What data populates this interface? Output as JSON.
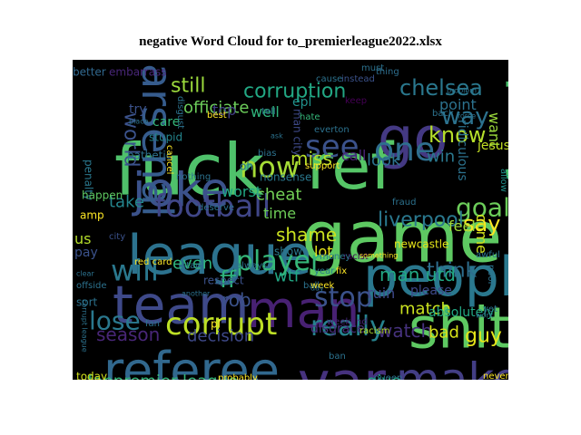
{
  "chart_data": {
    "type": "wordcloud",
    "title": "negative Word Cloud for to_premierleague2022.xlsx",
    "background": "#000000",
    "colormap": "viridis",
    "words": [
      {
        "text": "fuck",
        "color": "#4fc16b"
      },
      {
        "text": "ref",
        "color": "#56c667"
      },
      {
        "text": "go",
        "color": "#443983"
      },
      {
        "text": "play",
        "color": "#4ac16d"
      },
      {
        "text": "game",
        "color": "#5ec962"
      },
      {
        "text": "joke",
        "color": "#3b528b"
      },
      {
        "text": "league",
        "color": "#2c728e"
      },
      {
        "text": "people",
        "color": "#2a788e"
      },
      {
        "text": "shit",
        "color": "#5ec962"
      },
      {
        "text": "team",
        "color": "#3e4989"
      },
      {
        "text": "man",
        "color": "#482173"
      },
      {
        "text": "var",
        "color": "#46327e"
      },
      {
        "text": "referee",
        "color": "#31688e"
      },
      {
        "text": "make",
        "color": "#433e85"
      },
      {
        "text": "corrupt",
        "color": "#bddf26"
      },
      {
        "text": "arsenal",
        "color": "#365c8d"
      },
      {
        "text": "football",
        "color": "#404688"
      },
      {
        "text": "now",
        "color": "#a5db36"
      },
      {
        "text": "one",
        "color": "#2e6e8e"
      },
      {
        "text": "see",
        "color": "#3b528b"
      },
      {
        "text": "will",
        "color": "#2a788e"
      },
      {
        "text": "player",
        "color": "#35b779"
      },
      {
        "text": "stop",
        "color": "#3b528b"
      },
      {
        "text": "lose",
        "color": "#2a788e"
      },
      {
        "text": "really",
        "color": "#26828e"
      },
      {
        "text": "need",
        "color": "#7ad151"
      },
      {
        "text": "corruption",
        "color": "#22a884"
      },
      {
        "text": "chelsea",
        "color": "#2a788e"
      },
      {
        "text": "way",
        "color": "#2c728e"
      },
      {
        "text": "know",
        "color": "#b5de2b"
      },
      {
        "text": "goal",
        "color": "#6ccd5a"
      },
      {
        "text": "liverpool",
        "color": "#2a788e"
      },
      {
        "text": "say",
        "color": "#fde725"
      },
      {
        "text": "think",
        "color": "#2e6e8e"
      },
      {
        "text": "man utd",
        "color": "#22a884"
      },
      {
        "text": "shame",
        "color": "#cae11f"
      },
      {
        "text": "ff",
        "color": "#2eb37c"
      },
      {
        "text": "rob",
        "color": "#3b528b"
      },
      {
        "text": "decision",
        "color": "#3e4989"
      },
      {
        "text": "season",
        "color": "#482677"
      },
      {
        "text": "watch",
        "color": "#46327e"
      },
      {
        "text": "bad",
        "color": "#d8e219"
      },
      {
        "text": "guy",
        "color": "#e5e419"
      },
      {
        "text": "fanpremier league",
        "color": "#35b779"
      },
      {
        "text": "give",
        "color": "#22a884"
      },
      {
        "text": "official",
        "color": "#482878"
      },
      {
        "text": "club",
        "color": "#bddf26"
      },
      {
        "text": "wrong",
        "color": "#3b528b"
      },
      {
        "text": "world",
        "color": "#3b528b"
      },
      {
        "text": "take",
        "color": "#24868e"
      },
      {
        "text": "cheat",
        "color": "#73d056"
      },
      {
        "text": "miss",
        "color": "#b5de2b"
      },
      {
        "text": "look",
        "color": "#2c728e"
      },
      {
        "text": "win",
        "color": "#2a788e"
      },
      {
        "text": "lot",
        "color": "#e7e419"
      },
      {
        "text": "time",
        "color": "#6ece58"
      },
      {
        "text": "even",
        "color": "#2fb47c"
      },
      {
        "text": "wtf",
        "color": "#22a884"
      },
      {
        "text": "still",
        "color": "#9bd93c"
      },
      {
        "text": "officiate",
        "color": "#6ccd5a"
      },
      {
        "text": "well",
        "color": "#2fb47c"
      },
      {
        "text": "worst",
        "color": "#22a884"
      },
      {
        "text": "epl",
        "color": "#21918c"
      },
      {
        "text": "match",
        "color": "#cae11f"
      },
      {
        "text": "want",
        "color": "#9bd93c"
      },
      {
        "text": "call",
        "color": "#482173"
      },
      {
        "text": "point",
        "color": "#2c728e"
      },
      {
        "text": "ridiculous",
        "color": "#2c728e"
      },
      {
        "text": "jesus",
        "color": "#c2df23"
      },
      {
        "text": "come",
        "color": "#d2e21b"
      },
      {
        "text": "feel",
        "color": "#a0da39"
      },
      {
        "text": "ruin",
        "color": "#3e4989"
      },
      {
        "text": "please",
        "color": "#3e4989"
      },
      {
        "text": "absolutely",
        "color": "#22a884"
      },
      {
        "text": "disgrace",
        "color": "#472d7b"
      },
      {
        "text": "pay",
        "color": "#3b528b"
      },
      {
        "text": "us",
        "color": "#b5de2b"
      },
      {
        "text": "top",
        "color": "#423f85"
      },
      {
        "text": "try",
        "color": "#3b528b"
      },
      {
        "text": "care",
        "color": "#35b779"
      },
      {
        "text": "stupid",
        "color": "#24868e"
      },
      {
        "text": "pathetic",
        "color": "#2c728e"
      },
      {
        "text": "nonsense",
        "color": "#2a788e"
      },
      {
        "text": "man city",
        "color": "#3e4989"
      },
      {
        "text": "better",
        "color": "#31688e"
      },
      {
        "text": "embarrass",
        "color": "#482677"
      },
      {
        "text": "keep",
        "color": "#440154"
      },
      {
        "text": "thing",
        "color": "#2e6e8e"
      },
      {
        "text": "bias",
        "color": "#2c728e"
      },
      {
        "text": "penalty",
        "color": "#2a788e"
      },
      {
        "text": "happen",
        "color": "#5ec962"
      },
      {
        "text": "amp",
        "color": "#fde725"
      },
      {
        "text": "city",
        "color": "#3b528b"
      },
      {
        "text": "hate",
        "color": "#35b779"
      },
      {
        "text": "ball",
        "color": "#2c728e"
      },
      {
        "text": "always",
        "color": "#2c728e"
      },
      {
        "text": "show",
        "color": "#2a788e"
      },
      {
        "text": "respect",
        "color": "#3b528b"
      },
      {
        "text": "start",
        "color": "#2c728e"
      },
      {
        "text": "pl",
        "color": "#fde725"
      },
      {
        "text": "anthony taylor",
        "color": "#bddf26"
      },
      {
        "text": "probably",
        "color": "#fde725"
      },
      {
        "text": "useless",
        "color": "#2c728e"
      },
      {
        "text": "today",
        "color": "#d2e21b"
      },
      {
        "text": "red card",
        "color": "#fde725"
      },
      {
        "text": "support",
        "color": "#fde725"
      },
      {
        "text": "racist",
        "color": "#440154"
      },
      {
        "text": "newcastle",
        "color": "#e5e419"
      },
      {
        "text": "fix",
        "color": "#fde725"
      },
      {
        "text": "money",
        "color": "#2a788e"
      },
      {
        "text": "year",
        "color": "#2a788e"
      },
      {
        "text": "week",
        "color": "#fde725"
      },
      {
        "text": "weekend",
        "color": "#482677"
      },
      {
        "text": "racism",
        "color": "#b5de2b"
      },
      {
        "text": "sort",
        "color": "#2c728e"
      },
      {
        "text": "never",
        "color": "#fde725"
      },
      {
        "text": "poor",
        "color": "#2c728e"
      },
      {
        "text": "awful",
        "color": "#2c728e"
      },
      {
        "text": "allow",
        "color": "#21918c"
      },
      {
        "text": "must",
        "color": "#2c728e"
      },
      {
        "text": "cause",
        "color": "#2c728e"
      },
      {
        "text": "instead",
        "color": "#3b528b"
      },
      {
        "text": "cancel",
        "color": "#fde725"
      },
      {
        "text": "best",
        "color": "#fde725"
      },
      {
        "text": "tell",
        "color": "#2c728e"
      },
      {
        "text": "everton",
        "color": "#2c728e"
      },
      {
        "text": "fraud",
        "color": "#2c728e"
      },
      {
        "text": "offside",
        "color": "#2c728e"
      },
      {
        "text": "something",
        "color": "#fde725"
      },
      {
        "text": "queen",
        "color": "#2c728e"
      },
      {
        "text": "unite",
        "color": "#2c728e"
      },
      {
        "text": "ban",
        "color": "#2c728e"
      },
      {
        "text": "deserve",
        "color": "#2c728e"
      },
      {
        "text": "nothing",
        "color": "#2c728e"
      },
      {
        "text": "oh",
        "color": "#2c728e"
      },
      {
        "text": "place",
        "color": "#2c728e"
      },
      {
        "text": "back",
        "color": "#2c728e"
      },
      {
        "text": "force",
        "color": "#2c728e"
      },
      {
        "text": "problem",
        "color": "#2c728e"
      },
      {
        "text": "yet",
        "color": "#2c728e"
      },
      {
        "text": "work",
        "color": "#2c728e"
      },
      {
        "text": "clear",
        "color": "#2c728e"
      },
      {
        "text": "another",
        "color": "#2c728e"
      },
      {
        "text": "fan",
        "color": "#2c728e"
      },
      {
        "text": "disgust",
        "color": "#2c728e"
      },
      {
        "text": "day",
        "color": "#2c728e"
      },
      {
        "text": "ask",
        "color": "#2c728e"
      },
      {
        "text": "corrupt league",
        "color": "#2c728e"
      }
    ]
  }
}
